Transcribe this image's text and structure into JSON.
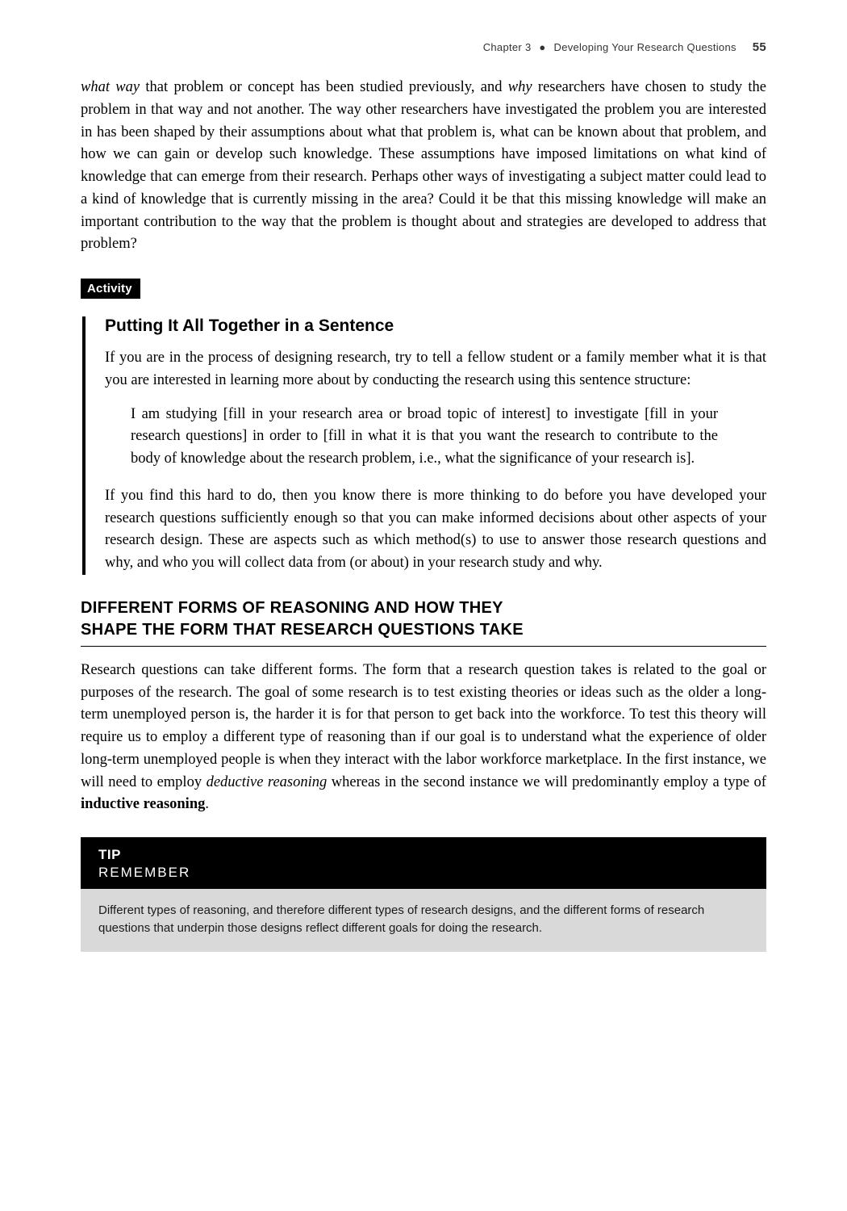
{
  "runningHead": {
    "chapter": "Chapter 3",
    "bullet": "●",
    "title": "Developing Your Research Questions",
    "page": "55"
  },
  "intro": {
    "p1_a": "what way",
    "p1_b": " that problem or concept has been studied previously, and ",
    "p1_c": "why",
    "p1_d": " researchers have chosen to study the problem in that way and not another. The way other researchers have investigated the problem you are interested in has been shaped by their assumptions about what that problem is, what can be known about that problem, and how we can gain or develop such knowledge. These assumptions have imposed limitations on what kind of knowledge that can emerge from their research. Perhaps other ways of investigating a subject matter could lead to a kind of knowledge that is currently missing in the area? Could it be that this missing knowledge will make an important contribution to the way that the problem is thought about and strategies are developed to address that problem?"
  },
  "activity": {
    "tag": "Activity",
    "title": "Putting It All Together in a Sentence",
    "p1": "If you are in the process of designing research, try to tell a fellow student or a family member what it is that you are interested in learning more about by conducting the research using this sentence structure:",
    "quote": "I am studying [fill in your research area or broad topic of interest] to investigate [fill in your research questions] in order to [fill in what it is that you want the research to contribute to the body of knowledge about the research problem, i.e., what the significance of your research is].",
    "p2": "If you find this hard to do, then you know there is more thinking to do before you have developed your research questions sufficiently enough so that you can make informed decisions about other aspects of your research design. These are aspects such as which method(s) to use to answer those research questions and why, and who you will collect data from (or about) in your research study and why."
  },
  "section": {
    "line1": "DIFFERENT FORMS OF REASONING AND HOW THEY",
    "line2": "SHAPE THE FORM THAT RESEARCH QUESTIONS TAKE",
    "p1_a": "Research questions can take different forms. The form that a research question takes is related to the goal or purposes of the research. The goal of some research is to test existing theories or ideas such as the older a long-term unemployed person is, the harder it is for that person to get back into the workforce. To test this theory will require us to employ a different type of reasoning than if our goal is to understand what the experience of older long-term unemployed people is when they interact with the labor workforce marketplace. In the first instance, we will need to employ ",
    "p1_b": "deductive reasoning",
    "p1_c": " whereas in the second instance we will predominantly employ a type of ",
    "p1_d": "inductive reasoning",
    "p1_e": "."
  },
  "tip": {
    "label": "TIP",
    "sub": "REMEMBER",
    "body": "Different types of reasoning, and therefore different types of research designs, and the different forms of research questions that underpin those designs reflect different goals for doing the research."
  }
}
